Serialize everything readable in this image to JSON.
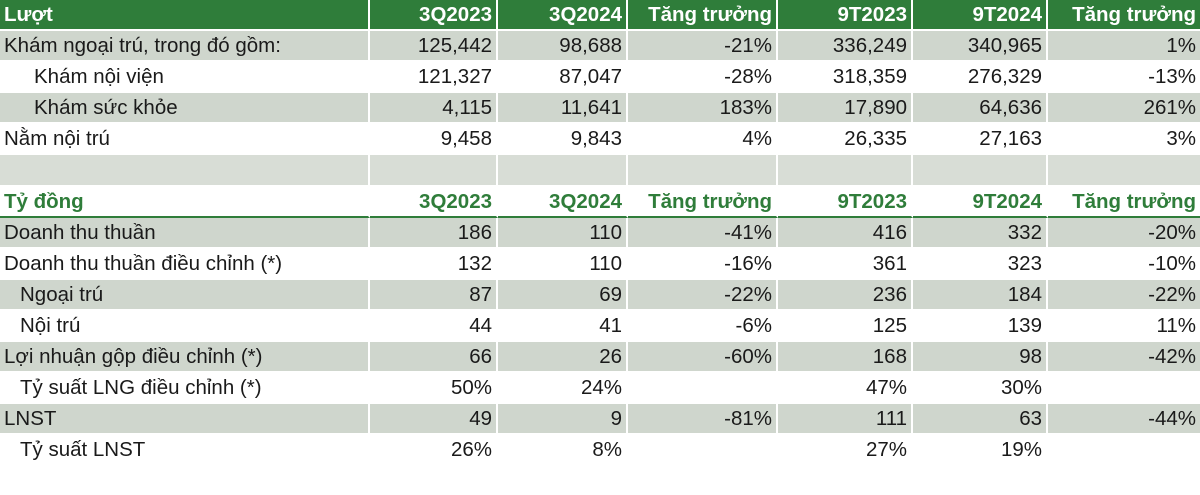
{
  "visits": {
    "header": [
      "Lượt",
      "3Q2023",
      "3Q2024",
      "Tăng trưởng",
      "9T2023",
      "9T2024",
      "Tăng trưởng"
    ],
    "rows": [
      [
        "Khám ngoại trú, trong đó gồm:",
        "125,442",
        "98,688",
        "-21%",
        "336,249",
        "340,965",
        "1%"
      ],
      [
        "Khám nội viện",
        "121,327",
        "87,047",
        "-28%",
        "318,359",
        "276,329",
        "-13%"
      ],
      [
        "Khám sức khỏe",
        "4,115",
        "11,641",
        "183%",
        "17,890",
        "64,636",
        "261%"
      ],
      [
        "Nằm nội trú",
        "9,458",
        "9,843",
        "4%",
        "26,335",
        "27,163",
        "3%"
      ]
    ]
  },
  "finance": {
    "header": [
      "Tỷ đồng",
      "3Q2023",
      "3Q2024",
      "Tăng trưởng",
      "9T2023",
      "9T2024",
      "Tăng trưởng"
    ],
    "rows": [
      [
        "Doanh thu thuần",
        "186",
        "110",
        "-41%",
        "416",
        "332",
        "-20%"
      ],
      [
        "Doanh thu thuần điều chỉnh (*)",
        "132",
        "110",
        "-16%",
        "361",
        "323",
        "-10%"
      ],
      [
        "Ngoại trú",
        "87",
        "69",
        "-22%",
        "236",
        "184",
        "-22%"
      ],
      [
        "Nội trú",
        "44",
        "41",
        "-6%",
        "125",
        "139",
        "11%"
      ],
      [
        "Lợi nhuận gộp điều chỉnh (*)",
        "66",
        "26",
        "-60%",
        "168",
        "98",
        "-42%"
      ],
      [
        "Tỷ suất LNG điều chỉnh (*)",
        "50%",
        "24%",
        "",
        "47%",
        "30%",
        ""
      ],
      [
        "LNST",
        "49",
        "9",
        "-81%",
        "111",
        "63",
        "-44%"
      ],
      [
        "Tỷ suất LNST",
        "26%",
        "8%",
        "",
        "27%",
        "19%",
        ""
      ]
    ]
  },
  "colors": {
    "header_green": "#2f7d3a",
    "row_shade": "#cfd6cd"
  }
}
